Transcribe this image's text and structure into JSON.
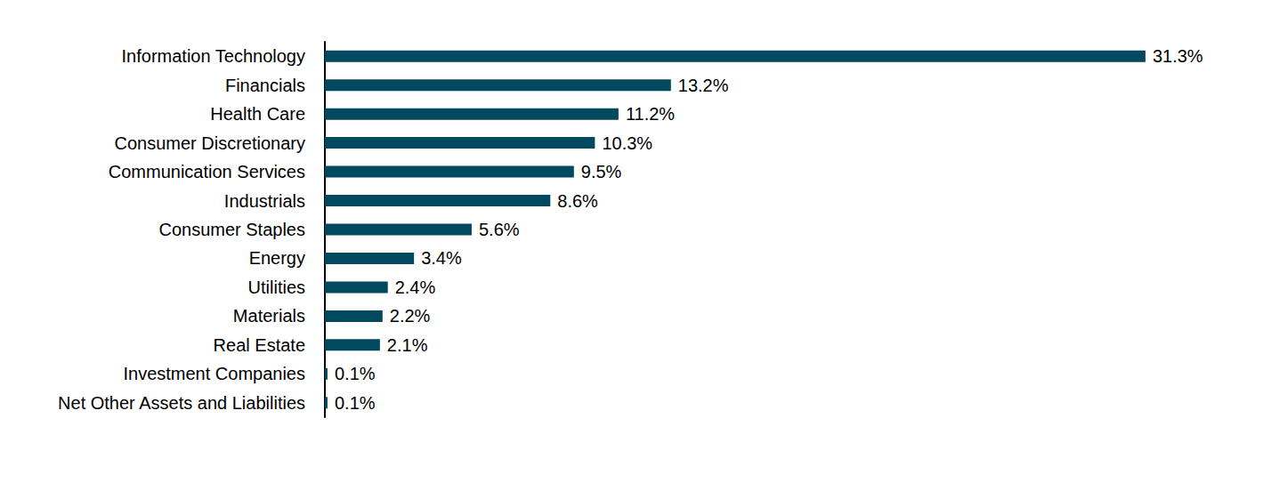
{
  "chart_data": {
    "type": "bar",
    "orientation": "horizontal",
    "categories": [
      "Information Technology",
      "Financials",
      "Health Care",
      "Consumer Discretionary",
      "Communication Services",
      "Industrials",
      "Consumer Staples",
      "Energy",
      "Utilities",
      "Materials",
      "Real Estate",
      "Investment Companies",
      "Net Other Assets and Liabilities"
    ],
    "values": [
      31.3,
      13.2,
      11.2,
      10.3,
      9.5,
      8.6,
      5.6,
      3.4,
      2.4,
      2.2,
      2.1,
      0.1,
      0.1
    ],
    "value_labels": [
      "31.3%",
      "13.2%",
      "11.2%",
      "10.3%",
      "9.5%",
      "8.6%",
      "5.6%",
      "3.4%",
      "2.4%",
      "2.2%",
      "2.1%",
      "0.1%",
      "0.1%"
    ],
    "color": "#00495f",
    "xlim": [
      0,
      33
    ],
    "grid": false,
    "data_labels": true,
    "tick_labels": "y"
  }
}
